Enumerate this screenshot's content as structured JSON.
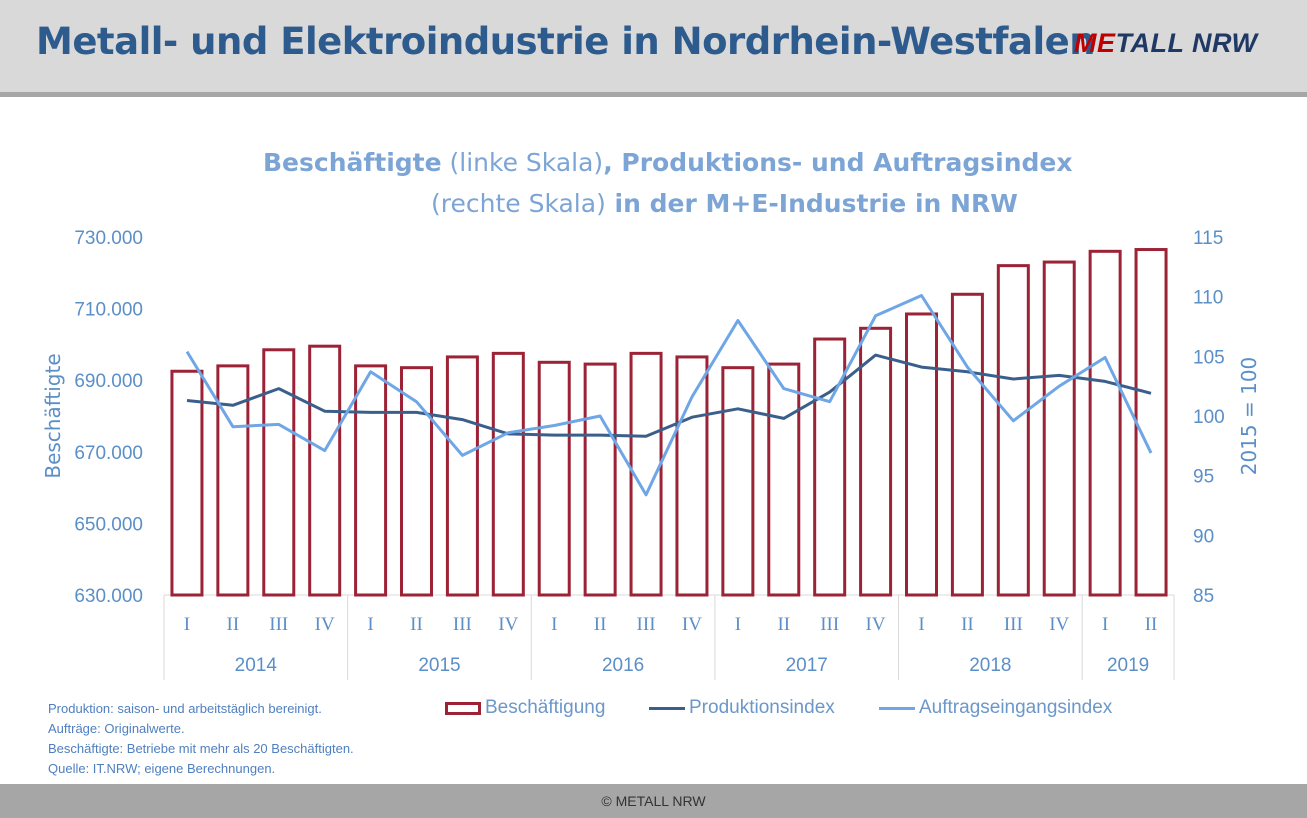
{
  "header": {
    "title": "Metall- und Elektroindustrie in Nordrhein-Westfalen",
    "logo_accent": "ME",
    "logo_rest": "TALL NRW"
  },
  "chart_title": {
    "part1_bold": "Beschäftigte",
    "part1_normal": " (linke Skala)",
    "part2_bold": ", Produktions- und Auftragsindex",
    "part3_normal": "(rechte Skala)",
    "part4_bold": " in der M+E-Industrie in NRW"
  },
  "legend": {
    "bar": "Beschäftigung",
    "line1": "Produktionsindex",
    "line2": "Auftragseingangsindex"
  },
  "notes": [
    "Produktion: saison- und arbeitstäglich bereinigt.",
    "Aufträge: Originalwerte.",
    "Beschäftigte: Betriebe mit mehr als 20 Beschäftigten.",
    "Quelle: IT.NRW; eigene Berechnungen."
  ],
  "footer": "© METALL NRW",
  "colors": {
    "bar_stroke": "#9b2335",
    "production_line": "#3b5f8a",
    "orders_line": "#6ea6e6",
    "axis_text": "#5b8fc7",
    "grid": "#d9d9d9"
  },
  "chart_data": {
    "type": "bar",
    "categories": [
      "I",
      "II",
      "III",
      "IV",
      "I",
      "II",
      "III",
      "IV",
      "I",
      "II",
      "III",
      "IV",
      "I",
      "II",
      "III",
      "IV",
      "I",
      "II",
      "III",
      "IV",
      "I",
      "II"
    ],
    "groups": [
      {
        "label": "2014",
        "count": 4
      },
      {
        "label": "2015",
        "count": 4
      },
      {
        "label": "2016",
        "count": 4
      },
      {
        "label": "2017",
        "count": 4
      },
      {
        "label": "2018",
        "count": 4
      },
      {
        "label": "2019",
        "count": 2
      }
    ],
    "ylabel": "Beschäftigte",
    "y2label": "2015 = 100",
    "ylim": [
      630000,
      730000
    ],
    "y2lim": [
      85,
      115
    ],
    "yticks": [
      "630.000",
      "650.000",
      "670.000",
      "690.000",
      "710.000",
      "730.000"
    ],
    "y2ticks": [
      "85",
      "90",
      "95",
      "100",
      "105",
      "110",
      "115"
    ],
    "series": [
      {
        "name": "Beschäftigung",
        "axis": "left",
        "kind": "bar",
        "values": [
          692500,
          694000,
          698500,
          699500,
          694000,
          693500,
          696500,
          697500,
          695000,
          694500,
          697500,
          696500,
          693500,
          694500,
          701500,
          704500,
          708500,
          714000,
          722000,
          723000,
          726000,
          726500
        ]
      },
      {
        "name": "Produktionsindex",
        "axis": "right",
        "kind": "line",
        "values": [
          101.3,
          100.9,
          102.3,
          100.4,
          100.3,
          100.3,
          99.7,
          98.5,
          98.4,
          98.4,
          98.3,
          99.9,
          100.6,
          99.8,
          102.0,
          105.1,
          104.1,
          103.7,
          103.1,
          103.4,
          102.9,
          101.9
        ]
      },
      {
        "name": "Auftragseingangsindex",
        "axis": "right",
        "kind": "line",
        "values": [
          105.4,
          99.1,
          99.3,
          97.1,
          103.7,
          101.2,
          96.7,
          98.6,
          99.2,
          100.0,
          93.4,
          101.6,
          108.0,
          102.3,
          101.2,
          108.4,
          110.1,
          104.1,
          99.6,
          102.5,
          104.9,
          96.9
        ]
      }
    ]
  }
}
